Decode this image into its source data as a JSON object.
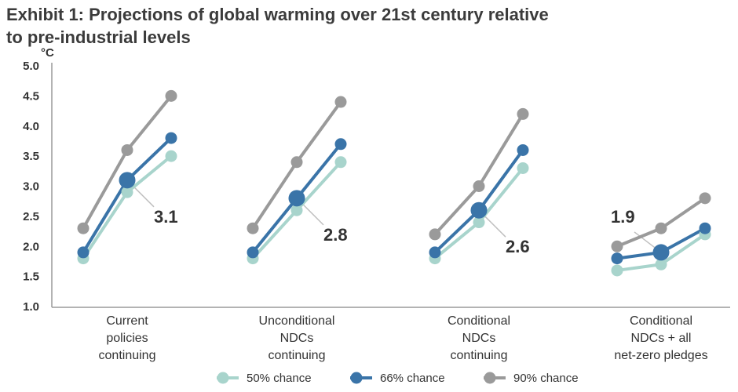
{
  "title": "Exhibit 1: Projections of global warming over 21st century relative to pre-industrial levels",
  "chart_data": {
    "type": "line",
    "ylabel": "°C",
    "ylim": [
      1.0,
      5.0
    ],
    "yticks": [
      "5.0",
      "4.5",
      "4.0",
      "3.5",
      "3.0",
      "2.5",
      "2.0",
      "1.5",
      "1.0"
    ],
    "grid": false,
    "legend_position": "bottom",
    "groups": [
      {
        "label": [
          "Current",
          "policies",
          "continuing"
        ],
        "annotation": "3.1"
      },
      {
        "label": [
          "Unconditional",
          "NDCs",
          "continuing"
        ],
        "annotation": "2.8"
      },
      {
        "label": [
          "Conditional",
          "NDCs",
          "continuing"
        ],
        "annotation": "2.6"
      },
      {
        "label": [
          "Conditional",
          "NDCs + all",
          "net-zero pledges"
        ],
        "annotation": "1.9"
      }
    ],
    "series": [
      {
        "name": "50% chance",
        "color": "#a8d4cc",
        "values": [
          [
            1.8,
            2.9,
            3.5
          ],
          [
            1.8,
            2.6,
            3.4
          ],
          [
            1.8,
            2.4,
            3.3
          ],
          [
            1.6,
            1.7,
            2.2
          ]
        ]
      },
      {
        "name": "66% chance",
        "color": "#3a74a8",
        "values": [
          [
            1.9,
            3.1,
            3.8
          ],
          [
            1.9,
            2.8,
            3.7
          ],
          [
            1.9,
            2.6,
            3.6
          ],
          [
            1.8,
            1.9,
            2.3
          ]
        ]
      },
      {
        "name": "90% chance",
        "color": "#9a9a9a",
        "values": [
          [
            2.3,
            3.6,
            4.5
          ],
          [
            2.3,
            3.4,
            4.4
          ],
          [
            2.2,
            3.0,
            4.2
          ],
          [
            2.0,
            2.3,
            2.8
          ]
        ]
      }
    ]
  }
}
